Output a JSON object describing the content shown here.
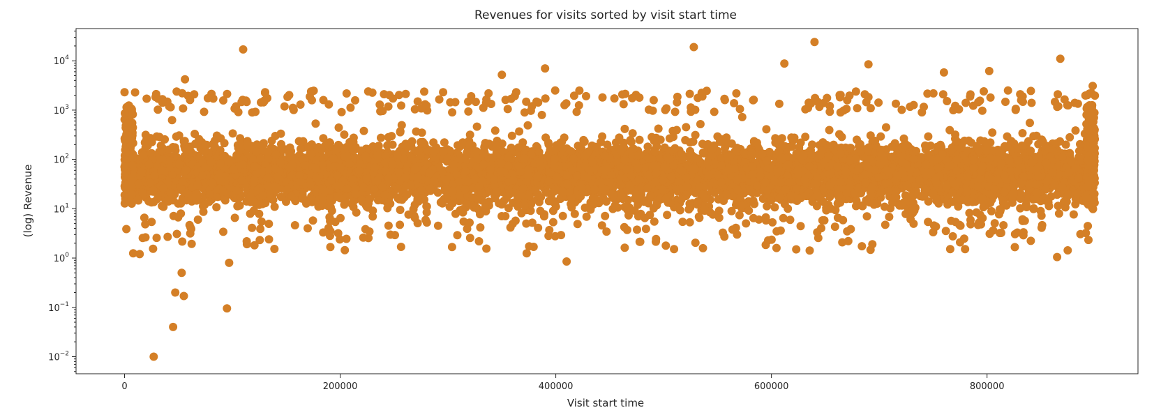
{
  "chart_data": {
    "type": "scatter",
    "title": "Revenues for visits sorted by visit start time",
    "xlabel": "Visit start time",
    "ylabel": "(log) Revenue",
    "y_scale": "log",
    "xlim": [
      -45000,
      940000
    ],
    "ylim": [
      0.0045,
      45000
    ],
    "x_ticks": [
      0,
      200000,
      400000,
      600000,
      800000
    ],
    "x_tick_labels": [
      "0",
      "200000",
      "400000",
      "600000",
      "800000"
    ],
    "y_ticks": [
      0.01,
      0.1,
      1,
      10,
      100,
      1000,
      10000
    ],
    "y_tick_labels": [
      {
        "base": "10",
        "exp": "−2"
      },
      {
        "base": "10",
        "exp": "−1"
      },
      {
        "base": "10",
        "exp": "0"
      },
      {
        "base": "10",
        "exp": "1"
      },
      {
        "base": "10",
        "exp": "2"
      },
      {
        "base": "10",
        "exp": "3"
      },
      {
        "base": "10",
        "exp": "4"
      }
    ],
    "grid": false,
    "marker_color": "#d47f26",
    "x_range": [
      0,
      900000
    ],
    "dense_band": {
      "y_min": 10,
      "y_max": 1000
    },
    "sample_points": [
      [
        27000,
        0.01
      ],
      [
        45000,
        0.04
      ],
      [
        47000,
        0.2
      ],
      [
        55000,
        0.17
      ],
      [
        95000,
        0.095
      ],
      [
        53000,
        0.5
      ],
      [
        97000,
        0.8
      ],
      [
        8000,
        1.25
      ],
      [
        14000,
        1.2
      ],
      [
        410000,
        0.85
      ],
      [
        373000,
        1.25
      ],
      [
        865000,
        1.05
      ],
      [
        110000,
        17000
      ],
      [
        528000,
        19000
      ],
      [
        640000,
        24000
      ],
      [
        390000,
        7000
      ],
      [
        612000,
        8800
      ],
      [
        690000,
        8500
      ],
      [
        868000,
        11000
      ],
      [
        802000,
        6200
      ],
      [
        350000,
        5200
      ],
      [
        760000,
        5800
      ],
      [
        56000,
        4200
      ],
      [
        0,
        2300
      ],
      [
        898000,
        3100
      ]
    ]
  }
}
